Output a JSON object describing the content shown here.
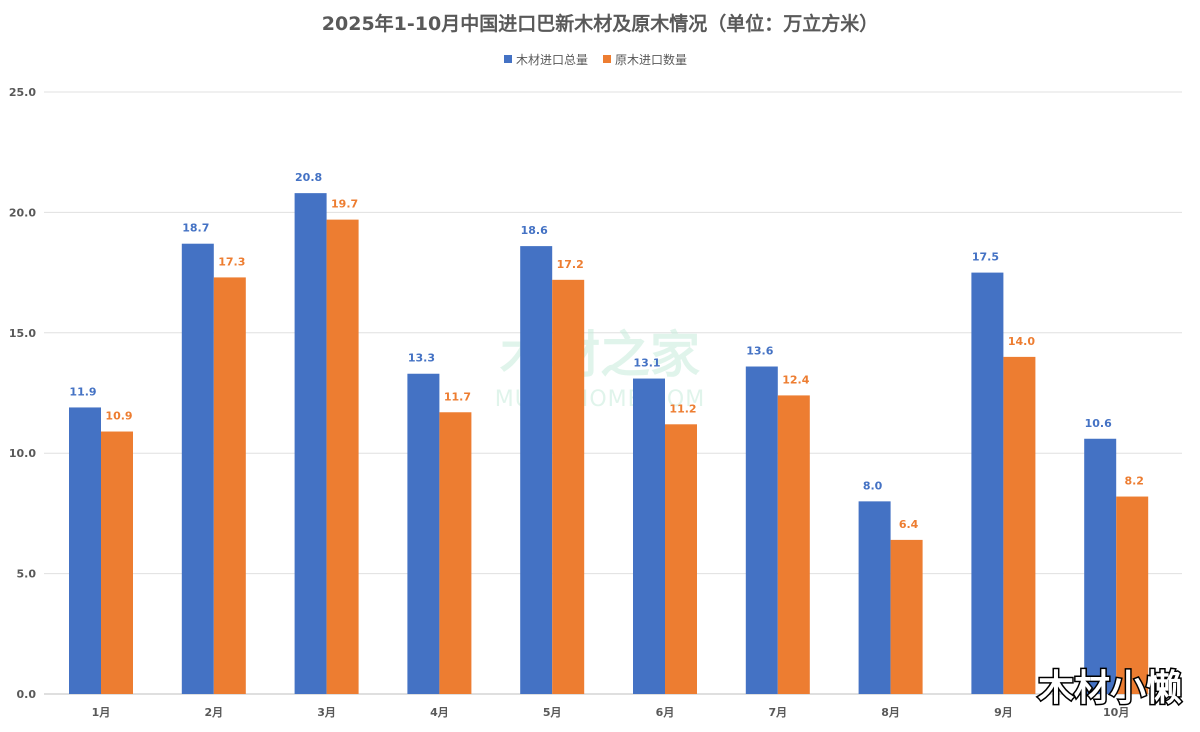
{
  "chart_data": {
    "type": "bar",
    "title": "2025年1-10月中国进口巴新木材及原木情况（单位：万立方米）",
    "categories": [
      "1月",
      "2月",
      "3月",
      "4月",
      "5月",
      "6月",
      "7月",
      "8月",
      "9月",
      "10月"
    ],
    "series": [
      {
        "name": "木材进口总量",
        "color": "#4472C4",
        "values": [
          11.9,
          18.7,
          20.8,
          13.3,
          18.6,
          13.1,
          13.6,
          8.0,
          17.5,
          10.6
        ]
      },
      {
        "name": "原木进口数量",
        "color": "#ED7D31",
        "values": [
          10.9,
          17.3,
          19.7,
          11.7,
          17.2,
          11.2,
          12.4,
          6.4,
          14.0,
          8.2
        ]
      }
    ],
    "yticks": [
      "0.0",
      "5.0",
      "10.0",
      "15.0",
      "20.0",
      "25.0"
    ],
    "ylim": [
      0,
      25
    ],
    "legend_position": "top-center",
    "grid": true,
    "xlabel": "",
    "ylabel": ""
  },
  "watermark": {
    "cn": "木材之家",
    "en": "MUCAIHOME.COM"
  },
  "corner_watermark": "木材小懒"
}
